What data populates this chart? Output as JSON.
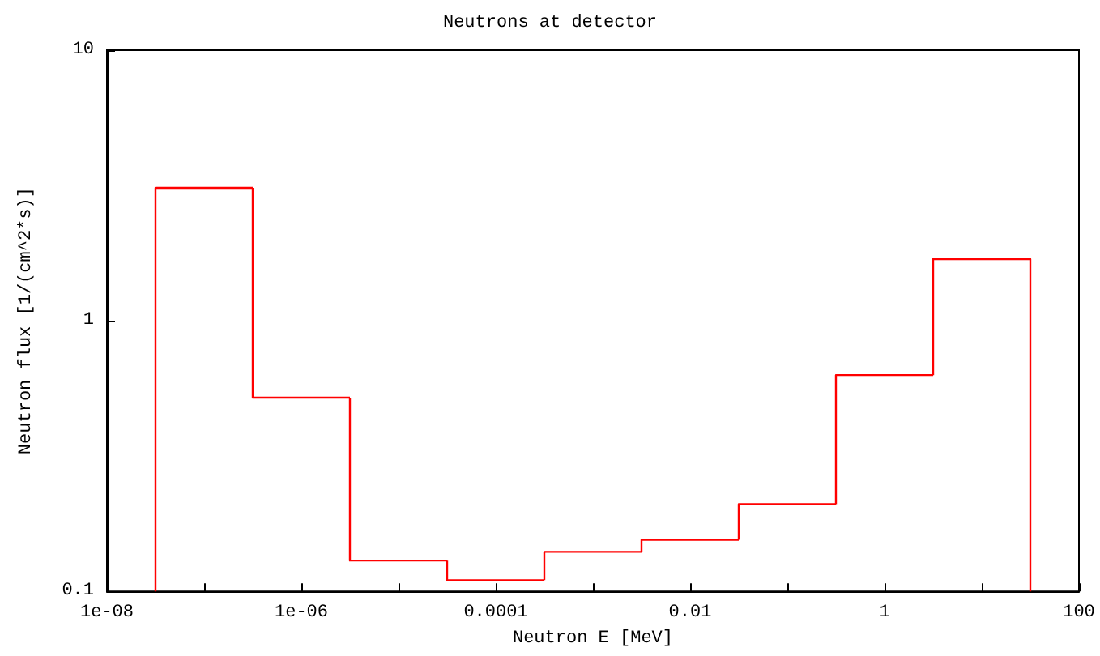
{
  "chart_data": {
    "type": "histogram",
    "title": "Neutrons at detector",
    "xlabel": "Neutron E [MeV]",
    "ylabel": "Neutron flux [1/(cm^2*s)]",
    "bins": [
      3.162e-08,
      3.162e-07,
      3.162e-06,
      3.162e-05,
      0.0003162,
      0.003162,
      0.03162,
      0.3162,
      3.162,
      31.62
    ],
    "values": [
      3.1,
      0.52,
      0.13,
      0.11,
      0.14,
      0.155,
      0.21,
      0.63,
      1.69
    ],
    "color": "#ff0000",
    "log": "xy",
    "xlim": [
      1e-08,
      100
    ],
    "xticks": [
      {
        "value": 1e-08,
        "label": "1e-08"
      },
      {
        "value": 1e-07,
        "label": null
      },
      {
        "value": 1e-06,
        "label": "1e-06"
      },
      {
        "value": 1e-05,
        "label": null
      },
      {
        "value": 0.0001,
        "label": "0.0001"
      },
      {
        "value": 0.001,
        "label": null
      },
      0.01,
      {
        "value": 0.1,
        "label": null
      },
      1,
      {
        "value": 10,
        "label": null
      },
      100
    ],
    "ylim": [
      0.1,
      10
    ],
    "yticks": [
      0.1,
      1,
      10
    ]
  }
}
